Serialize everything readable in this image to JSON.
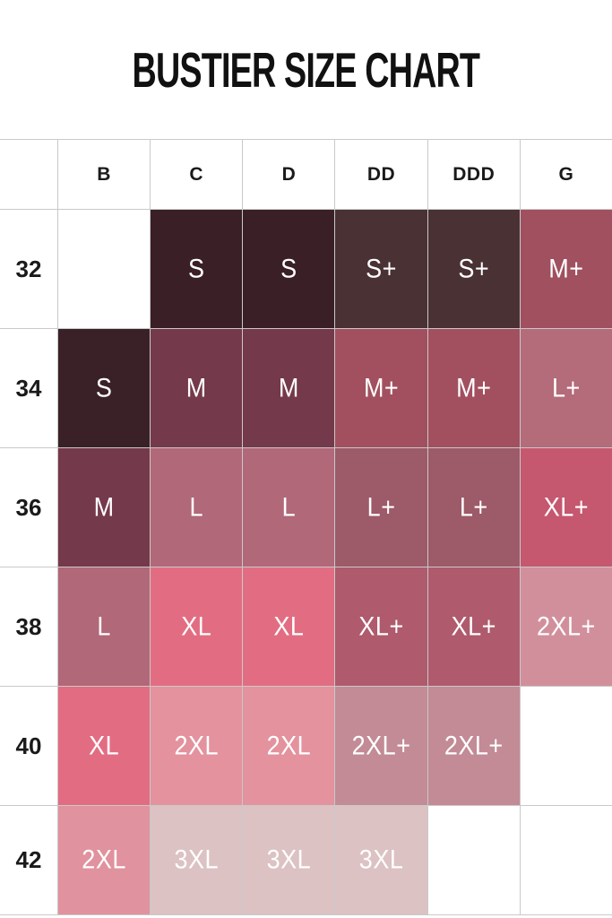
{
  "title": "BUSTIER SIZE CHART",
  "chart_data": {
    "type": "table",
    "title": "BUSTIER SIZE CHART",
    "column_headers": [
      "B",
      "C",
      "D",
      "DD",
      "DDD",
      "G"
    ],
    "row_headers": [
      "32",
      "34",
      "36",
      "38",
      "40",
      "42"
    ],
    "cells": [
      [
        {
          "label": "",
          "color": ""
        },
        {
          "label": "S",
          "color": "#3A2026"
        },
        {
          "label": "S",
          "color": "#3A2026"
        },
        {
          "label": "S+",
          "color": "#493134"
        },
        {
          "label": "S+",
          "color": "#493134"
        },
        {
          "label": "M+",
          "color": "#A0505F"
        }
      ],
      [
        {
          "label": "S",
          "color": "#3A2127"
        },
        {
          "label": "M",
          "color": "#74394A"
        },
        {
          "label": "M",
          "color": "#74394A"
        },
        {
          "label": "M+",
          "color": "#A2505F"
        },
        {
          "label": "M+",
          "color": "#A2505F"
        },
        {
          "label": "L+",
          "color": "#B46B7A"
        }
      ],
      [
        {
          "label": "M",
          "color": "#74394A"
        },
        {
          "label": "L",
          "color": "#B16878"
        },
        {
          "label": "L",
          "color": "#B16878"
        },
        {
          "label": "L+",
          "color": "#9D5A68"
        },
        {
          "label": "L+",
          "color": "#9D5A68"
        },
        {
          "label": "XL+",
          "color": "#C5576F"
        }
      ],
      [
        {
          "label": "L",
          "color": "#B16878"
        },
        {
          "label": "XL",
          "color": "#E26D82"
        },
        {
          "label": "XL",
          "color": "#E26D82"
        },
        {
          "label": "XL+",
          "color": "#AF5A6D"
        },
        {
          "label": "XL+",
          "color": "#AF5A6D"
        },
        {
          "label": "2XL+",
          "color": "#D18F9C"
        }
      ],
      [
        {
          "label": "XL",
          "color": "#E26D82"
        },
        {
          "label": "2XL",
          "color": "#E3929E"
        },
        {
          "label": "2XL",
          "color": "#E3929E"
        },
        {
          "label": "2XL+",
          "color": "#C28B96"
        },
        {
          "label": "2XL+",
          "color": "#C28B96"
        },
        {
          "label": "",
          "color": ""
        }
      ],
      [
        {
          "label": "2XL",
          "color": "#E0929E"
        },
        {
          "label": "3XL",
          "color": "#DCC2C3"
        },
        {
          "label": "3XL",
          "color": "#DCC2C3"
        },
        {
          "label": "3XL",
          "color": "#DCC2C3"
        },
        {
          "label": "",
          "color": ""
        },
        {
          "label": "",
          "color": ""
        }
      ]
    ],
    "cell_text_color": "#FFFFFF",
    "header_text_color": "#1A1A1A",
    "grid_line_color": "#C9C9C9",
    "background": "#FFFFFF"
  }
}
